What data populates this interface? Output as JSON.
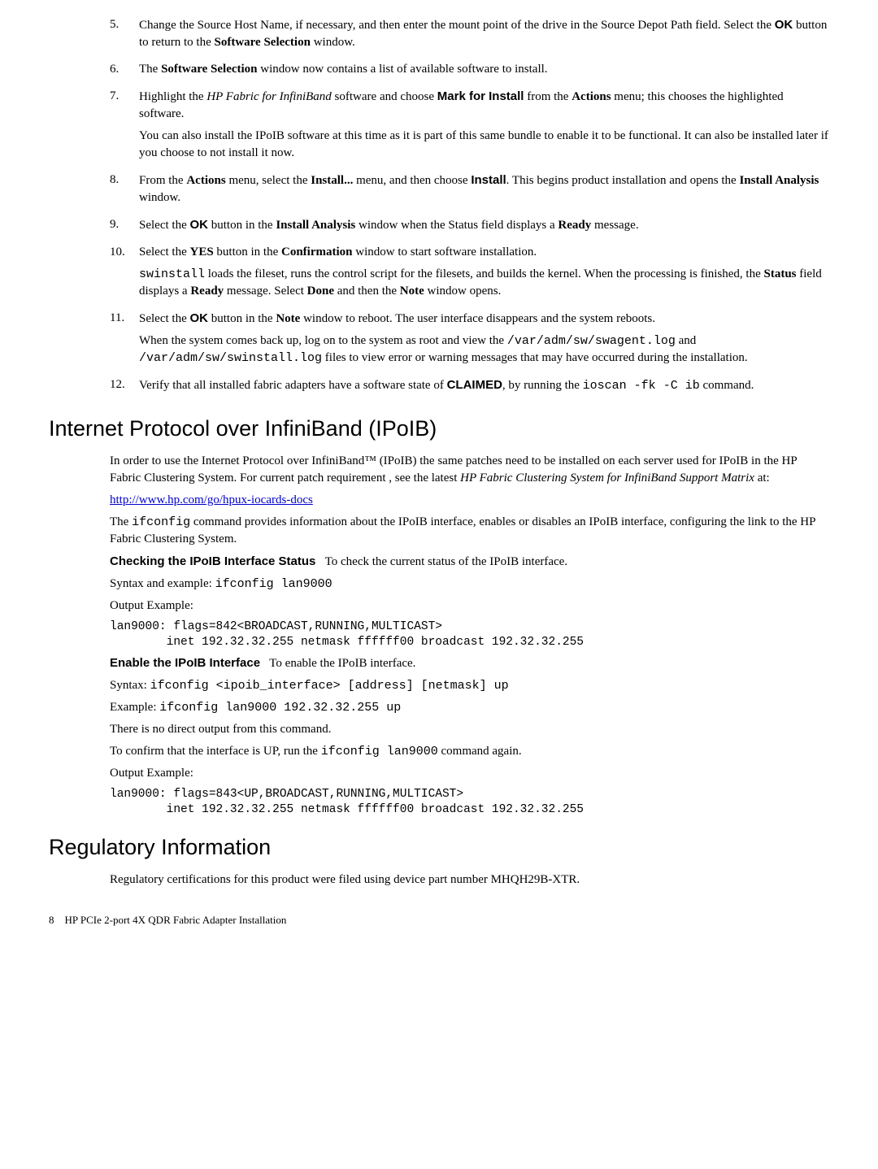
{
  "steps_top": [
    {
      "num": "5.",
      "html": "Change the Source Host Name, if necessary, and then enter the mount point of the drive in the Source Depot Path field. Select the <span class='sans-bold'>OK</span> button to return to the <b>Software Selection</b> window."
    },
    {
      "num": "6.",
      "html": "The <b>Software Selection</b> window now contains a list of available software to install."
    },
    {
      "num": "7.",
      "html": "Highlight the <i>HP Fabric for InfiniBand</i> software and choose <span class='sans-bold'>Mark for Install</span> from the <b>Actions</b> menu; this chooses the highlighted software.",
      "extra": "You can also install the IPoIB software at this time as it is part of this same bundle to enable it to be functional. It can also be installed later if you choose to not install it now."
    },
    {
      "num": "8.",
      "html": "From the <b>Actions</b> menu, select the <b>Install...</b> menu, and then choose <span class='sans-bold'>Install</span>. This begins product installation and opens the <b>Install Analysis</b> window."
    },
    {
      "num": "9.",
      "html": "Select the <span class='sans-bold'>OK</span> button in the <b>Install Analysis</b> window when the Status field displays a <b>Ready</b> message."
    },
    {
      "num": "10.",
      "html": "Select the <b>YES</b> button in the <b>Confirmation</b> window to start software installation.",
      "extra": "<span class='mono'>swinstall</span> loads the fileset, runs the control script for the filesets, and builds the kernel. When the processing is finished, the <b>Status</b> field displays a <b>Ready</b> message. Select <b>Done</b> and then the <b>Note</b> window opens."
    },
    {
      "num": "11.",
      "html": "Select the <span class='sans-bold'>OK</span> button in the <b>Note</b> window to reboot. The user interface disappears and the system reboots.",
      "extra": "When the system comes back up, log on to the system as root and view the <span class='mono'>/var/adm/sw/swagent.log</span> and <span class='mono'>/var/adm/sw/swinstall.log</span> files to view error or warning messages that may have occurred during the installation."
    },
    {
      "num": "12.",
      "html": "Verify that all installed fabric adapters have a software state of <span class='sans-bold'>CLAIMED</span>, by running the <span class='mono'>ioscan -fk -C ib</span> command."
    }
  ],
  "h2_ipoib": "Internet Protocol over InfiniBand (IPoIB)",
  "ipoib_intro": "In order to use the Internet Protocol over InfiniBand™ (IPoIB) the same patches need to be installed on each server used for IPoIB in the HP Fabric Clustering System. For current patch requirement , see the latest <i>HP Fabric Clustering System for InfiniBand Support Matrix</i> at:",
  "ipoib_link": "http://www.hp.com/go/hpux-iocards-docs",
  "ipoib_ifconfig": "The <span class='mono'>ifconfig</span> command provides information about the IPoIB interface, enables or disables an IPoIB interface, configuring the link to the HP Fabric Clustering System.",
  "check_heading": "Checking the IPoIB Interface Status",
  "check_text": "To check the current status of the IPoIB interface.",
  "syntax_example_label": "Syntax and example: ",
  "syntax_example_cmd": "ifconfig lan9000",
  "output_example_label": "Output Example:",
  "output1": "lan9000: flags=842<BROADCAST,RUNNING,MULTICAST>\n        inet 192.32.32.255 netmask ffffff00 broadcast 192.32.32.255",
  "enable_heading": "Enable the IPoIB Interface",
  "enable_text": "To enable the IPoIB interface.",
  "syntax_label": "Syntax: ",
  "syntax_cmd": "ifconfig <ipoib_interface> [address] [netmask] up",
  "example_label": "Example: ",
  "example_cmd": "ifconfig lan9000 192.32.32.255 up",
  "no_output": "There is no direct output from this command.",
  "confirm_text": "To confirm that the interface is UP, run the <span class='mono'>ifconfig lan9000</span> command again.",
  "output2": "lan9000: flags=843<UP,BROADCAST,RUNNING,MULTICAST>\n        inet 192.32.32.255 netmask ffffff00 broadcast 192.32.32.255",
  "h2_reg": "Regulatory Information",
  "reg_text": "Regulatory certifications for this product were filed using device part number MHQH29B-XTR.",
  "footer_page": "8",
  "footer_title": "HP PCIe 2-port 4X QDR Fabric Adapter Installation"
}
